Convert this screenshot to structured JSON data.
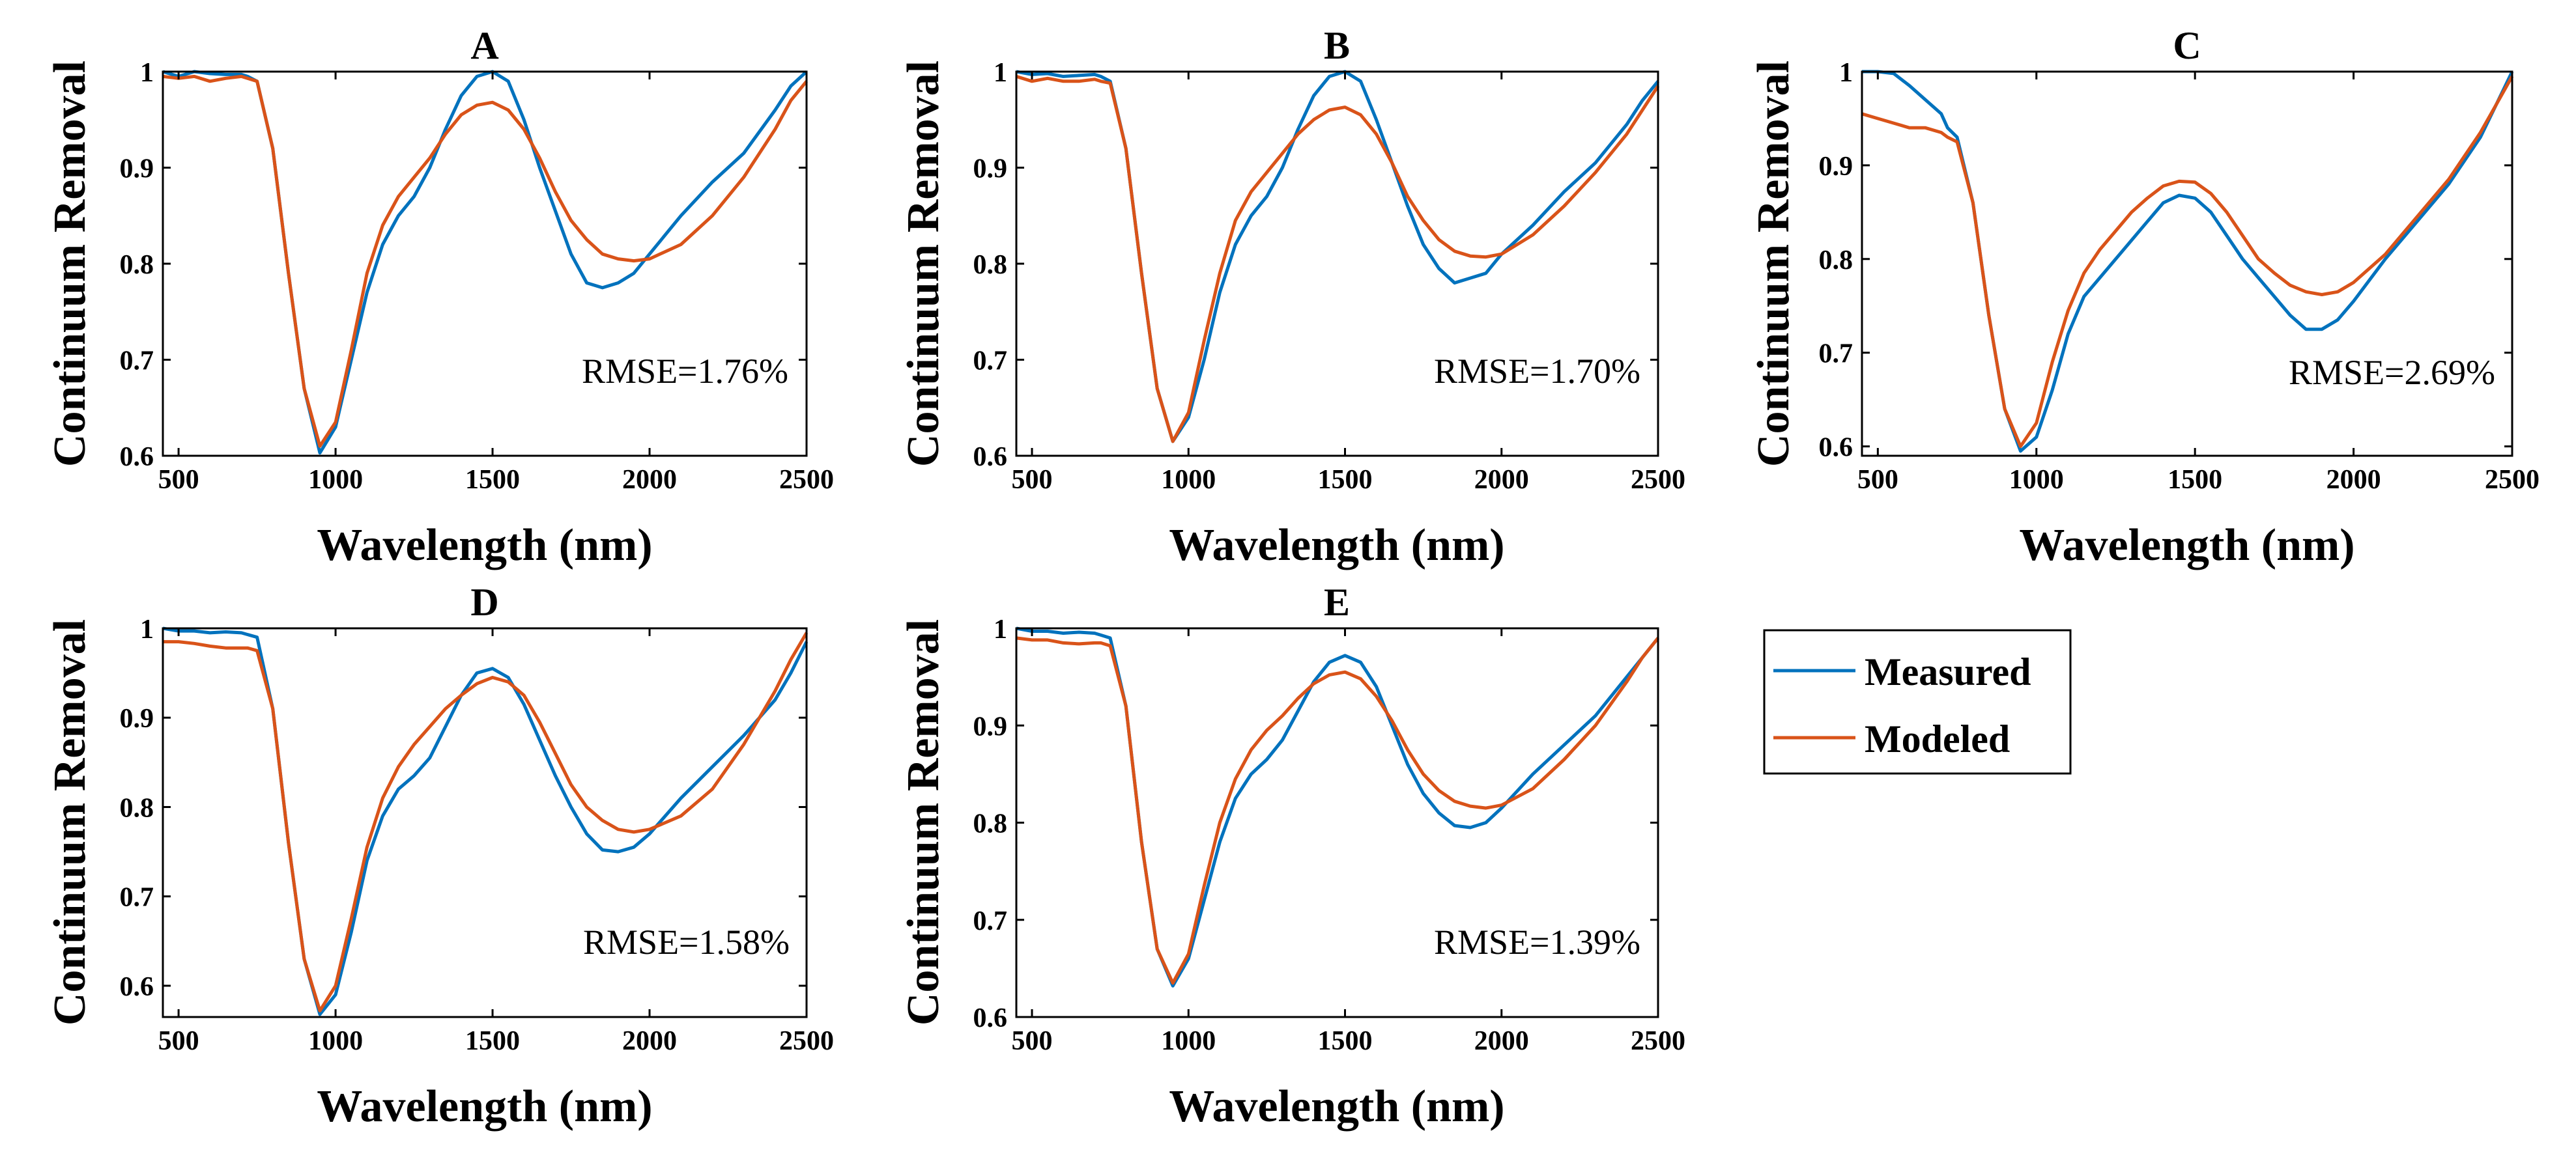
{
  "chart_data": [
    {
      "type": "line",
      "title": "A",
      "xlabel": "Wavelength (nm)",
      "ylabel": "Continuum Removal",
      "xlim": [
        450,
        2500
      ],
      "ylim": [
        0.6,
        1.0
      ],
      "xticks": [
        500,
        1000,
        1500,
        2000,
        2500
      ],
      "yticks": [
        0.6,
        0.7,
        0.8,
        0.9,
        1
      ],
      "ytick_labels": [
        "0.6",
        "0.7",
        "0.8",
        "0.9",
        "1"
      ],
      "annotation": "RMSE=1.76%",
      "series": [
        {
          "name": "Measured",
          "x": [
            450,
            500,
            550,
            600,
            650,
            700,
            720,
            750,
            800,
            850,
            900,
            950,
            1000,
            1050,
            1100,
            1150,
            1200,
            1250,
            1300,
            1350,
            1400,
            1450,
            1500,
            1550,
            1600,
            1650,
            1700,
            1750,
            1800,
            1850,
            1900,
            1950,
            2000,
            2100,
            2200,
            2300,
            2400,
            2450,
            2500
          ],
          "y": [
            1.0,
            0.995,
            1.0,
            0.998,
            0.997,
            0.997,
            0.995,
            0.99,
            0.92,
            0.79,
            0.67,
            0.603,
            0.63,
            0.7,
            0.77,
            0.82,
            0.85,
            0.87,
            0.9,
            0.94,
            0.975,
            0.995,
            1.0,
            0.99,
            0.95,
            0.9,
            0.855,
            0.81,
            0.78,
            0.775,
            0.78,
            0.79,
            0.81,
            0.85,
            0.885,
            0.915,
            0.96,
            0.985,
            1.0
          ]
        },
        {
          "name": "Modeled",
          "x": [
            450,
            500,
            550,
            600,
            650,
            700,
            720,
            750,
            800,
            850,
            900,
            950,
            1000,
            1050,
            1100,
            1150,
            1200,
            1250,
            1300,
            1350,
            1400,
            1450,
            1500,
            1550,
            1600,
            1650,
            1700,
            1750,
            1800,
            1850,
            1900,
            1950,
            2000,
            2100,
            2200,
            2300,
            2400,
            2450,
            2500
          ],
          "y": [
            0.995,
            0.993,
            0.995,
            0.99,
            0.993,
            0.995,
            0.993,
            0.99,
            0.92,
            0.79,
            0.67,
            0.61,
            0.635,
            0.71,
            0.79,
            0.84,
            0.87,
            0.89,
            0.91,
            0.935,
            0.955,
            0.965,
            0.968,
            0.96,
            0.94,
            0.91,
            0.875,
            0.845,
            0.825,
            0.81,
            0.805,
            0.803,
            0.805,
            0.82,
            0.85,
            0.89,
            0.94,
            0.97,
            0.99
          ]
        }
      ]
    },
    {
      "type": "line",
      "title": "B",
      "xlabel": "Wavelength (nm)",
      "ylabel": "Continuum Removal",
      "xlim": [
        450,
        2500
      ],
      "ylim": [
        0.6,
        1.0
      ],
      "xticks": [
        500,
        1000,
        1500,
        2000,
        2500
      ],
      "yticks": [
        0.6,
        0.7,
        0.8,
        0.9,
        1
      ],
      "ytick_labels": [
        "0.6",
        "0.7",
        "0.8",
        "0.9",
        "1"
      ],
      "annotation": "RMSE=1.70%",
      "series": [
        {
          "name": "Measured",
          "x": [
            450,
            500,
            550,
            600,
            650,
            700,
            720,
            750,
            800,
            850,
            900,
            950,
            1000,
            1050,
            1100,
            1150,
            1200,
            1250,
            1300,
            1350,
            1400,
            1450,
            1500,
            1550,
            1600,
            1650,
            1700,
            1750,
            1800,
            1850,
            1900,
            1950,
            2000,
            2100,
            2200,
            2300,
            2400,
            2450,
            2500
          ],
          "y": [
            1.0,
            0.997,
            0.998,
            0.995,
            0.996,
            0.997,
            0.995,
            0.99,
            0.92,
            0.79,
            0.67,
            0.615,
            0.64,
            0.7,
            0.77,
            0.82,
            0.85,
            0.87,
            0.9,
            0.94,
            0.975,
            0.995,
            1.0,
            0.99,
            0.95,
            0.905,
            0.86,
            0.82,
            0.795,
            0.78,
            0.785,
            0.79,
            0.81,
            0.84,
            0.875,
            0.905,
            0.945,
            0.97,
            0.99
          ]
        },
        {
          "name": "Modeled",
          "x": [
            450,
            500,
            550,
            600,
            650,
            700,
            720,
            750,
            800,
            850,
            900,
            950,
            1000,
            1050,
            1100,
            1150,
            1200,
            1250,
            1300,
            1350,
            1400,
            1450,
            1500,
            1550,
            1600,
            1650,
            1700,
            1750,
            1800,
            1850,
            1900,
            1950,
            2000,
            2100,
            2200,
            2300,
            2400,
            2450,
            2500
          ],
          "y": [
            0.995,
            0.99,
            0.993,
            0.99,
            0.99,
            0.992,
            0.99,
            0.988,
            0.92,
            0.79,
            0.67,
            0.615,
            0.645,
            0.72,
            0.79,
            0.845,
            0.875,
            0.895,
            0.915,
            0.935,
            0.95,
            0.96,
            0.963,
            0.955,
            0.935,
            0.905,
            0.87,
            0.845,
            0.825,
            0.813,
            0.808,
            0.807,
            0.81,
            0.83,
            0.86,
            0.895,
            0.935,
            0.96,
            0.985
          ]
        }
      ]
    },
    {
      "type": "line",
      "title": "C",
      "xlabel": "Wavelength (nm)",
      "ylabel": "Continuum Removal",
      "xlim": [
        450,
        2500
      ],
      "ylim": [
        0.59,
        1.0
      ],
      "xticks": [
        500,
        1000,
        1500,
        2000,
        2500
      ],
      "yticks": [
        0.6,
        0.7,
        0.8,
        0.9,
        1
      ],
      "ytick_labels": [
        "0.6",
        "0.7",
        "0.8",
        "0.9",
        "1"
      ],
      "annotation": "RMSE=2.69%",
      "series": [
        {
          "name": "Measured",
          "x": [
            450,
            500,
            550,
            600,
            650,
            700,
            720,
            750,
            800,
            850,
            900,
            950,
            1000,
            1050,
            1100,
            1150,
            1200,
            1250,
            1300,
            1350,
            1400,
            1450,
            1500,
            1550,
            1600,
            1650,
            1700,
            1750,
            1800,
            1850,
            1900,
            1950,
            2000,
            2100,
            2200,
            2300,
            2400,
            2450,
            2500
          ],
          "y": [
            1.0,
            1.0,
            0.998,
            0.985,
            0.97,
            0.955,
            0.94,
            0.93,
            0.86,
            0.74,
            0.64,
            0.595,
            0.61,
            0.66,
            0.72,
            0.76,
            0.78,
            0.8,
            0.82,
            0.84,
            0.86,
            0.868,
            0.865,
            0.85,
            0.825,
            0.8,
            0.78,
            0.76,
            0.74,
            0.725,
            0.725,
            0.735,
            0.755,
            0.8,
            0.84,
            0.88,
            0.93,
            0.965,
            1.0
          ]
        },
        {
          "name": "Modeled",
          "x": [
            450,
            500,
            550,
            600,
            650,
            700,
            720,
            750,
            800,
            850,
            900,
            950,
            1000,
            1050,
            1100,
            1150,
            1200,
            1250,
            1300,
            1350,
            1400,
            1450,
            1500,
            1550,
            1600,
            1650,
            1700,
            1750,
            1800,
            1850,
            1900,
            1950,
            2000,
            2100,
            2200,
            2300,
            2400,
            2450,
            2500
          ],
          "y": [
            0.955,
            0.95,
            0.945,
            0.94,
            0.94,
            0.935,
            0.93,
            0.925,
            0.86,
            0.74,
            0.64,
            0.6,
            0.625,
            0.69,
            0.745,
            0.785,
            0.81,
            0.83,
            0.85,
            0.865,
            0.878,
            0.883,
            0.882,
            0.87,
            0.85,
            0.825,
            0.8,
            0.785,
            0.772,
            0.765,
            0.762,
            0.765,
            0.775,
            0.805,
            0.845,
            0.885,
            0.935,
            0.965,
            0.995
          ]
        }
      ]
    },
    {
      "type": "line",
      "title": "D",
      "xlabel": "Wavelength (nm)",
      "ylabel": "Continuum Removal",
      "xlim": [
        450,
        2500
      ],
      "ylim": [
        0.565,
        1.0
      ],
      "xticks": [
        500,
        1000,
        1500,
        2000,
        2500
      ],
      "yticks": [
        0.6,
        0.7,
        0.8,
        0.9,
        1
      ],
      "ytick_labels": [
        "0.6",
        "0.7",
        "0.8",
        "0.9",
        "1"
      ],
      "annotation": "RMSE=1.58%",
      "series": [
        {
          "name": "Measured",
          "x": [
            450,
            500,
            550,
            600,
            650,
            700,
            720,
            750,
            800,
            850,
            900,
            950,
            1000,
            1050,
            1100,
            1150,
            1200,
            1250,
            1300,
            1350,
            1400,
            1450,
            1500,
            1550,
            1600,
            1650,
            1700,
            1750,
            1800,
            1850,
            1900,
            1950,
            2000,
            2100,
            2200,
            2300,
            2400,
            2450,
            2500
          ],
          "y": [
            1.0,
            0.997,
            0.997,
            0.995,
            0.996,
            0.995,
            0.993,
            0.99,
            0.91,
            0.76,
            0.63,
            0.568,
            0.59,
            0.66,
            0.74,
            0.79,
            0.82,
            0.835,
            0.855,
            0.89,
            0.925,
            0.95,
            0.955,
            0.945,
            0.915,
            0.875,
            0.835,
            0.8,
            0.77,
            0.752,
            0.75,
            0.755,
            0.77,
            0.81,
            0.845,
            0.88,
            0.92,
            0.95,
            0.985
          ]
        },
        {
          "name": "Modeled",
          "x": [
            450,
            500,
            550,
            600,
            650,
            700,
            720,
            750,
            800,
            850,
            900,
            950,
            1000,
            1050,
            1100,
            1150,
            1200,
            1250,
            1300,
            1350,
            1400,
            1450,
            1500,
            1550,
            1600,
            1650,
            1700,
            1750,
            1800,
            1850,
            1900,
            1950,
            2000,
            2100,
            2200,
            2300,
            2400,
            2450,
            2500
          ],
          "y": [
            0.985,
            0.985,
            0.983,
            0.98,
            0.978,
            0.978,
            0.978,
            0.975,
            0.91,
            0.76,
            0.63,
            0.572,
            0.6,
            0.675,
            0.755,
            0.81,
            0.845,
            0.87,
            0.89,
            0.91,
            0.925,
            0.938,
            0.945,
            0.94,
            0.925,
            0.895,
            0.86,
            0.825,
            0.8,
            0.785,
            0.775,
            0.772,
            0.775,
            0.79,
            0.82,
            0.87,
            0.93,
            0.965,
            0.995
          ]
        }
      ]
    },
    {
      "type": "line",
      "title": "E",
      "xlabel": "Wavelength (nm)",
      "ylabel": "Continuum Removal",
      "xlim": [
        450,
        2500
      ],
      "ylim": [
        0.6,
        1.0
      ],
      "xticks": [
        500,
        1000,
        1500,
        2000,
        2500
      ],
      "yticks": [
        0.6,
        0.7,
        0.8,
        0.9,
        1
      ],
      "ytick_labels": [
        "0.6",
        "0.7",
        "0.8",
        "0.9",
        "1"
      ],
      "annotation": "RMSE=1.39%",
      "series": [
        {
          "name": "Measured",
          "x": [
            450,
            500,
            550,
            600,
            650,
            700,
            720,
            750,
            800,
            850,
            900,
            950,
            1000,
            1050,
            1100,
            1150,
            1200,
            1250,
            1300,
            1350,
            1400,
            1450,
            1500,
            1550,
            1600,
            1650,
            1700,
            1750,
            1800,
            1850,
            1900,
            1950,
            2000,
            2100,
            2200,
            2300,
            2400,
            2450,
            2500
          ],
          "y": [
            1.0,
            0.997,
            0.997,
            0.995,
            0.996,
            0.995,
            0.993,
            0.99,
            0.92,
            0.78,
            0.67,
            0.632,
            0.66,
            0.72,
            0.78,
            0.825,
            0.85,
            0.865,
            0.885,
            0.915,
            0.945,
            0.965,
            0.972,
            0.965,
            0.94,
            0.9,
            0.86,
            0.83,
            0.81,
            0.797,
            0.795,
            0.8,
            0.815,
            0.85,
            0.88,
            0.91,
            0.95,
            0.97,
            0.99
          ]
        },
        {
          "name": "Modeled",
          "x": [
            450,
            500,
            550,
            600,
            650,
            700,
            720,
            750,
            800,
            850,
            900,
            950,
            1000,
            1050,
            1100,
            1150,
            1200,
            1250,
            1300,
            1350,
            1400,
            1450,
            1500,
            1550,
            1600,
            1650,
            1700,
            1750,
            1800,
            1850,
            1900,
            1950,
            2000,
            2100,
            2200,
            2300,
            2400,
            2450,
            2500
          ],
          "y": [
            0.99,
            0.988,
            0.988,
            0.985,
            0.984,
            0.985,
            0.985,
            0.982,
            0.92,
            0.78,
            0.67,
            0.635,
            0.665,
            0.735,
            0.8,
            0.845,
            0.875,
            0.895,
            0.91,
            0.928,
            0.943,
            0.952,
            0.955,
            0.948,
            0.93,
            0.905,
            0.875,
            0.85,
            0.833,
            0.822,
            0.817,
            0.815,
            0.818,
            0.835,
            0.865,
            0.9,
            0.945,
            0.97,
            0.99
          ]
        }
      ]
    }
  ],
  "legend": {
    "entries": [
      {
        "label": "Measured",
        "color": "#0072BD"
      },
      {
        "label": "Modeled",
        "color": "#D95319"
      }
    ]
  }
}
